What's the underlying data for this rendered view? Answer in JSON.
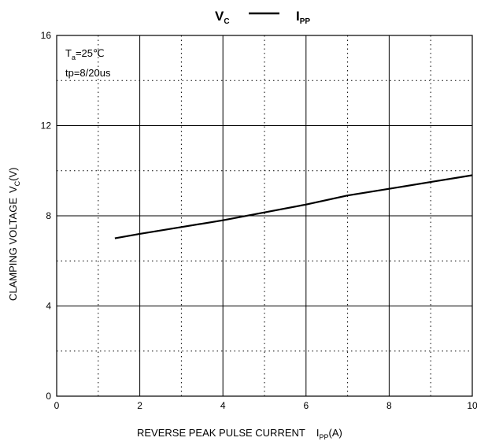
{
  "chart_data": {
    "type": "line",
    "title": {
      "left_symbol": "V",
      "left_sub": "C",
      "right_symbol": "I",
      "right_sub": "PP"
    },
    "xlabel": {
      "main": "REVERSE PEAK PULSE CURRENT",
      "symbol": "I",
      "sub": "PP",
      "unit": "(A)"
    },
    "ylabel": {
      "main": "CLAMPING VOLTAGE",
      "symbol": "V",
      "sub": "C",
      "unit": "(V)"
    },
    "xlim": [
      0,
      10
    ],
    "ylim": [
      0,
      16
    ],
    "x_ticks": [
      0,
      2,
      4,
      6,
      8,
      10
    ],
    "y_ticks": [
      0,
      4,
      8,
      12,
      16
    ],
    "x_minor_grid": [
      1,
      3,
      5,
      7,
      9
    ],
    "y_minor_grid": [
      2,
      6,
      10,
      14
    ],
    "grid": true,
    "annotations": [
      {
        "symbol": "T",
        "sub": "a",
        "text": "=25℃"
      },
      {
        "text": "tp=8/20us"
      }
    ],
    "series": [
      {
        "color": "#000000",
        "x": [
          1.4,
          2,
          3,
          4,
          5,
          6,
          7,
          8,
          9,
          10
        ],
        "y": [
          7.0,
          7.2,
          7.5,
          7.8,
          8.15,
          8.5,
          8.9,
          9.2,
          9.5,
          9.8
        ]
      }
    ]
  }
}
